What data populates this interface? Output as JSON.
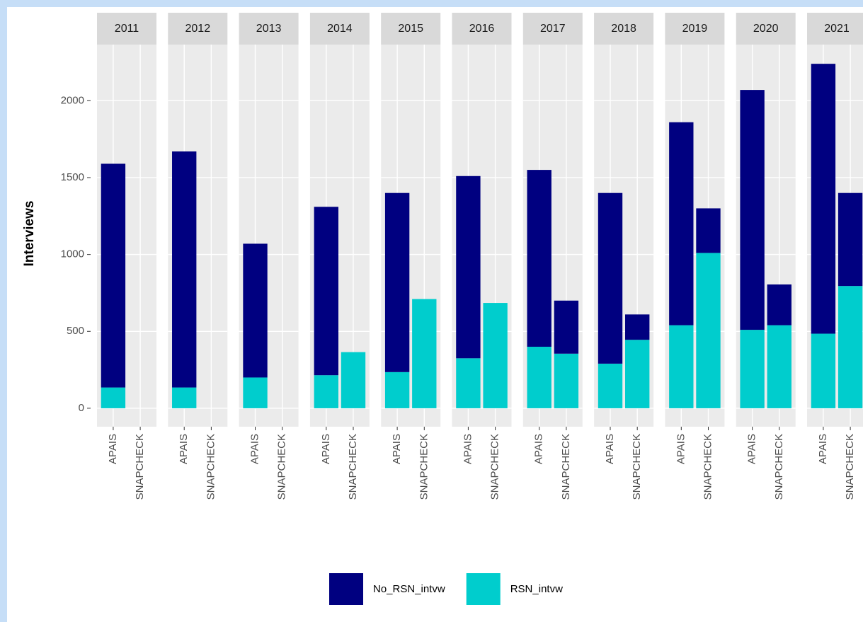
{
  "chart_data": {
    "type": "bar",
    "stacked": true,
    "ylabel": "Interviews",
    "facets": [
      "2011",
      "2012",
      "2013",
      "2014",
      "2015",
      "2016",
      "2017",
      "2018",
      "2019",
      "2020",
      "2021"
    ],
    "categories": [
      "APAIS",
      "SNAPCHECK"
    ],
    "series": [
      {
        "name": "No_RSN_intvw",
        "color": "#000080",
        "values": [
          [
            1455,
            null
          ],
          [
            1535,
            null
          ],
          [
            870,
            null
          ],
          [
            1095,
            0
          ],
          [
            1165,
            0
          ],
          [
            1185,
            0
          ],
          [
            1150,
            345
          ],
          [
            1110,
            165
          ],
          [
            1320,
            290
          ],
          [
            1560,
            265
          ],
          [
            1755,
            605
          ]
        ]
      },
      {
        "name": "RSN_intvw",
        "color": "#00CDCD",
        "values": [
          [
            135,
            null
          ],
          [
            135,
            null
          ],
          [
            200,
            null
          ],
          [
            215,
            365
          ],
          [
            235,
            710
          ],
          [
            325,
            685
          ],
          [
            400,
            355
          ],
          [
            290,
            445
          ],
          [
            540,
            1010
          ],
          [
            510,
            540
          ],
          [
            485,
            795
          ]
        ]
      }
    ],
    "ylim": [
      -120,
      2365
    ],
    "yticks": [
      0,
      500,
      1000,
      1500,
      2000
    ],
    "grid": true,
    "legend": "bottom"
  }
}
